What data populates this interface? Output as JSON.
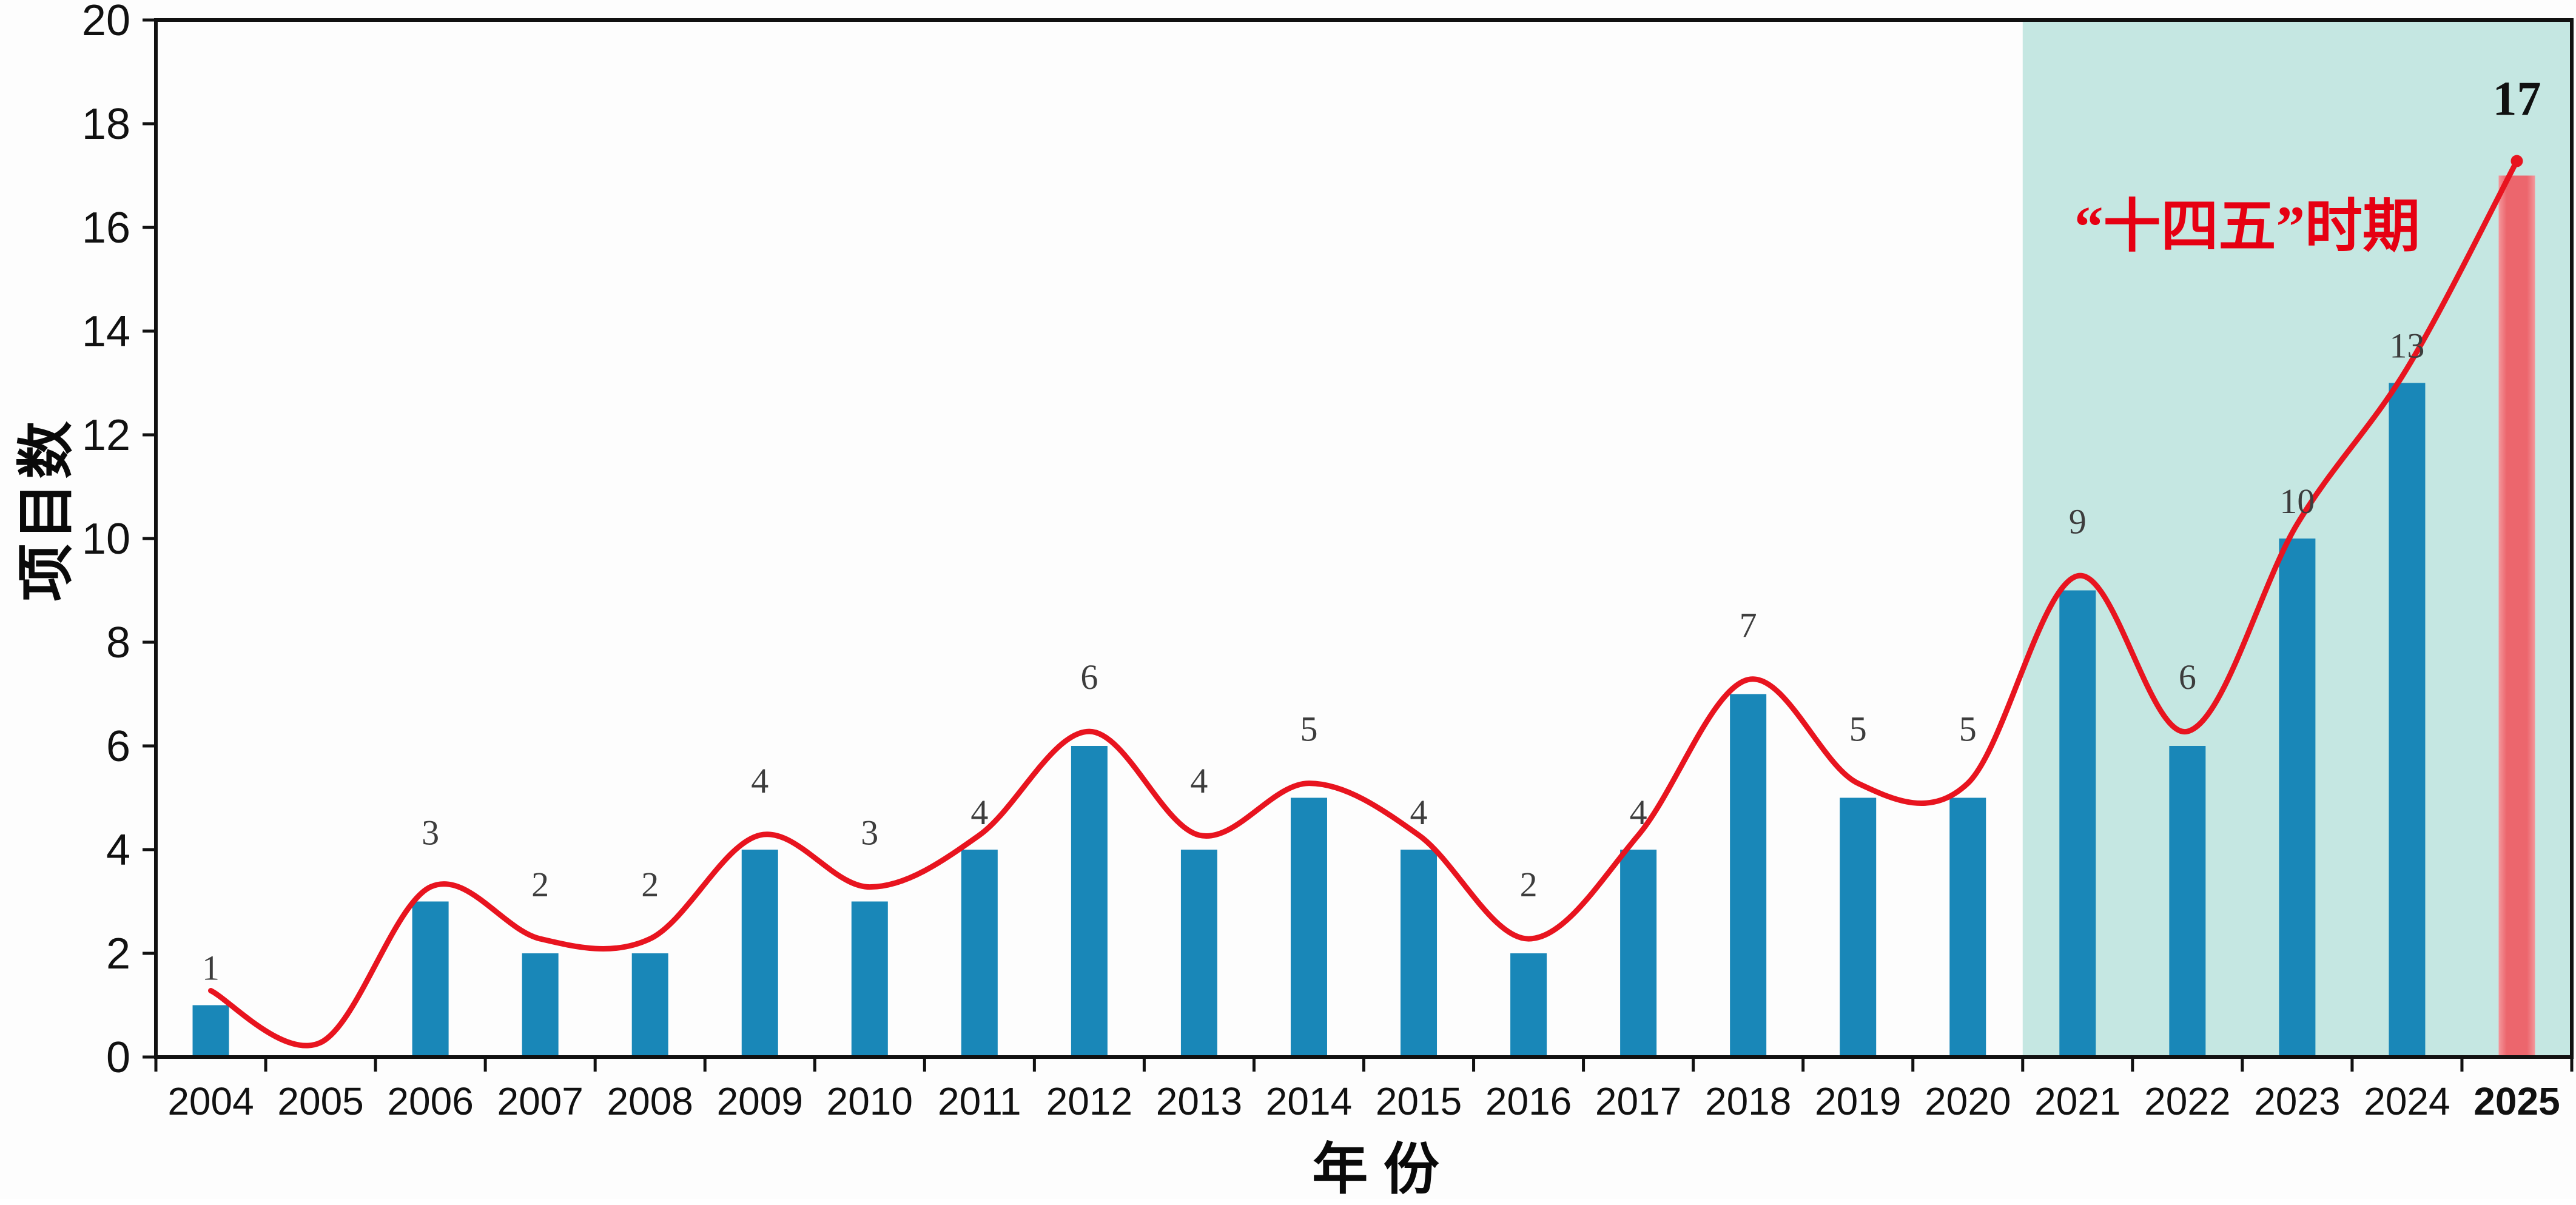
{
  "chart_data": {
    "type": "bar",
    "title": "",
    "categories": [
      "2004",
      "2005",
      "2006",
      "2007",
      "2008",
      "2009",
      "2010",
      "2011",
      "2012",
      "2013",
      "2014",
      "2015",
      "2016",
      "2017",
      "2018",
      "2019",
      "2020",
      "2021",
      "2022",
      "2023",
      "2024",
      "2025"
    ],
    "series": [
      {
        "name": "项目数",
        "type": "bar",
        "values": [
          1,
          0,
          3,
          2,
          2,
          4,
          3,
          4,
          6,
          4,
          5,
          4,
          2,
          4,
          7,
          5,
          5,
          9,
          6,
          10,
          13,
          17
        ]
      },
      {
        "name": "平滑趋势线",
        "type": "line",
        "values": [
          1,
          0,
          3,
          2,
          2,
          4,
          3,
          4,
          6,
          4,
          5,
          4,
          2,
          4,
          7,
          5,
          5,
          9,
          6,
          10,
          13,
          17
        ]
      }
    ],
    "data_labels": [
      "1",
      "",
      "3",
      "2",
      "2",
      "4",
      "3",
      "4",
      "6",
      "4",
      "5",
      "4",
      "2",
      "4",
      "7",
      "5",
      "5",
      "9",
      "6",
      "10",
      "13",
      "17"
    ],
    "xlabel": "年 份",
    "ylabel": "项目数",
    "ylim": [
      0,
      20
    ],
    "ytick_step": 2,
    "yticks": [
      "0",
      "2",
      "4",
      "6",
      "8",
      "10",
      "12",
      "14",
      "16",
      "18",
      "20"
    ],
    "bold_xticks": [
      "2025"
    ],
    "grid": false,
    "legend": "none",
    "highlight_region": {
      "label": "“十四五”时期",
      "from": "2021",
      "to": "2025"
    },
    "colors": {
      "bar": "#1987b8",
      "highlight_year_bar": "#ed6b71",
      "line": "#e8141f",
      "region_fill": "#c5e7e2",
      "region_label": "#e60012",
      "axis": "#111111",
      "tick_label": "#111111",
      "data_label": "#3d3d3d",
      "final_data_label": "#111111"
    }
  }
}
